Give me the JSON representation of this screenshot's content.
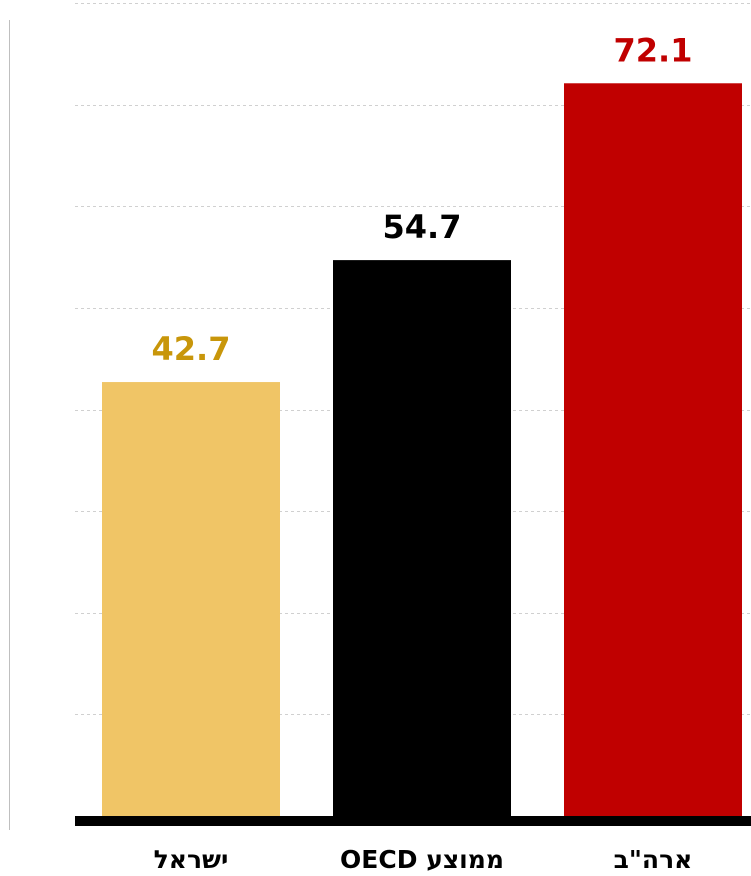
{
  "chart_data": {
    "type": "bar",
    "categories": [
      "ישראל",
      "ממוצע OECD",
      "ארה\"ב"
    ],
    "values": [
      42.7,
      54.7,
      72.1
    ],
    "value_labels": [
      "42.7",
      "54.7",
      "72.1"
    ],
    "colors": [
      "#f0c566",
      "#000000",
      "#c00000"
    ],
    "label_colors": [
      "#c8960a",
      "#000000",
      "#c00000"
    ],
    "ylim": [
      0,
      80
    ],
    "grid": true,
    "legend": "none"
  }
}
